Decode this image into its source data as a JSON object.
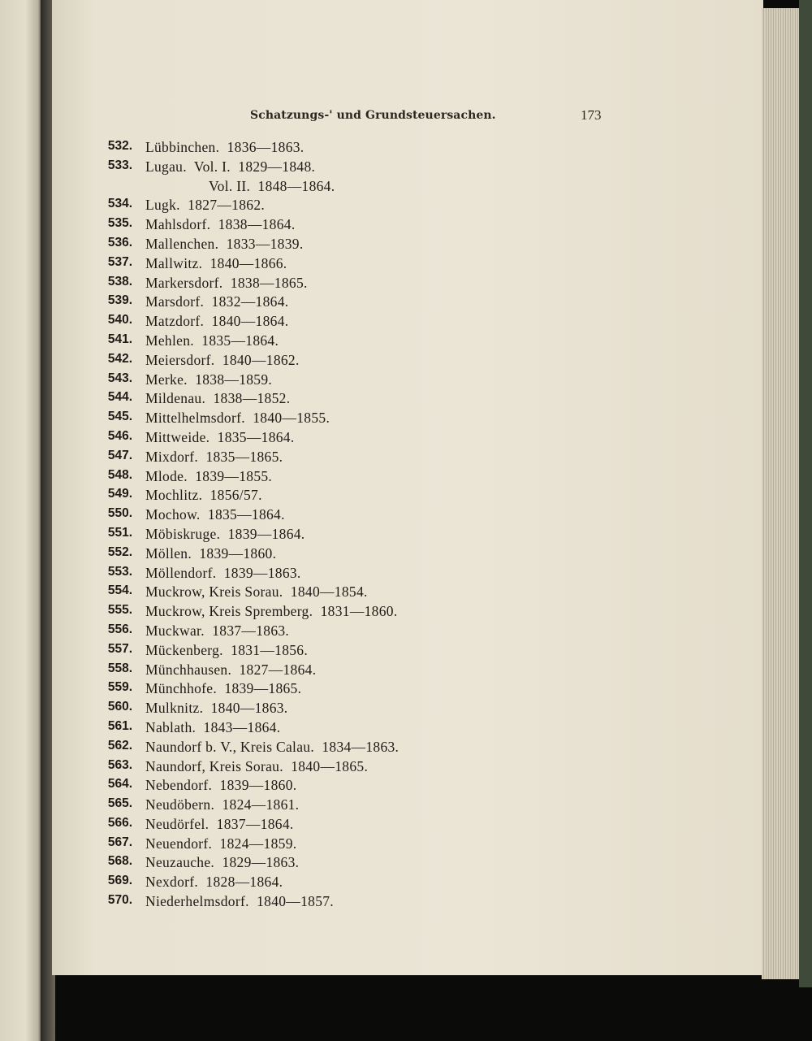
{
  "header": {
    "running_title": "Schatzungs-' und Grundsteuersachen.",
    "page_number": "173"
  },
  "entries": [
    {
      "number": "532.",
      "text": "Lübbinchen.  1836—1863."
    },
    {
      "number": "533.",
      "text": "Lugau.  Vol. I.  1829—1848."
    },
    {
      "number": "",
      "text": "Vol. II.  1848—1864."
    },
    {
      "number": "534.",
      "text": "Lugk.  1827—1862."
    },
    {
      "number": "535.",
      "text": "Mahlsdorf.  1838—1864."
    },
    {
      "number": "536.",
      "text": "Mallenchen.  1833—1839."
    },
    {
      "number": "537.",
      "text": "Mallwitz.  1840—1866."
    },
    {
      "number": "538.",
      "text": "Markersdorf.  1838—1865."
    },
    {
      "number": "539.",
      "text": "Marsdorf.  1832—1864."
    },
    {
      "number": "540.",
      "text": "Matzdorf.  1840—1864."
    },
    {
      "number": "541.",
      "text": "Mehlen.  1835—1864."
    },
    {
      "number": "542.",
      "text": "Meiersdorf.  1840—1862."
    },
    {
      "number": "543.",
      "text": "Merke.  1838—1859."
    },
    {
      "number": "544.",
      "text": "Mildenau.  1838—1852."
    },
    {
      "number": "545.",
      "text": "Mittelhelmsdorf.  1840—1855."
    },
    {
      "number": "546.",
      "text": "Mittweide.  1835—1864."
    },
    {
      "number": "547.",
      "text": "Mixdorf.  1835—1865."
    },
    {
      "number": "548.",
      "text": "Mlode.  1839—1855."
    },
    {
      "number": "549.",
      "text": "Mochlitz.  1856/57."
    },
    {
      "number": "550.",
      "text": "Mochow.  1835—1864."
    },
    {
      "number": "551.",
      "text": "Möbiskruge.  1839—1864."
    },
    {
      "number": "552.",
      "text": "Möllen.  1839—1860."
    },
    {
      "number": "553.",
      "text": "Möllendorf.  1839—1863."
    },
    {
      "number": "554.",
      "text": "Muckrow, Kreis Sorau.  1840—1854."
    },
    {
      "number": "555.",
      "text": "Muckrow, Kreis Spremberg.  1831—1860."
    },
    {
      "number": "556.",
      "text": "Muckwar.  1837—1863."
    },
    {
      "number": "557.",
      "text": "Mückenberg.  1831—1856."
    },
    {
      "number": "558.",
      "text": "Münchhausen.  1827—1864."
    },
    {
      "number": "559.",
      "text": "Münchhofe.  1839—1865."
    },
    {
      "number": "560.",
      "text": "Mulknitz.  1840—1863."
    },
    {
      "number": "561.",
      "text": "Nablath.  1843—1864."
    },
    {
      "number": "562.",
      "text": "Naundorf b. V., Kreis Calau.  1834—1863."
    },
    {
      "number": "563.",
      "text": "Naundorf, Kreis Sorau.  1840—1865."
    },
    {
      "number": "564.",
      "text": "Nebendorf.  1839—1860."
    },
    {
      "number": "565.",
      "text": "Neudöbern.  1824—1861."
    },
    {
      "number": "566.",
      "text": "Neudörfel.  1837—1864."
    },
    {
      "number": "567.",
      "text": "Neuendorf.  1824—1859."
    },
    {
      "number": "568.",
      "text": "Neuzauche.  1829—1863."
    },
    {
      "number": "569.",
      "text": "Nexdorf.  1828—1864."
    },
    {
      "number": "570.",
      "text": "Niederhelmsdorf.  1840—1857."
    }
  ]
}
